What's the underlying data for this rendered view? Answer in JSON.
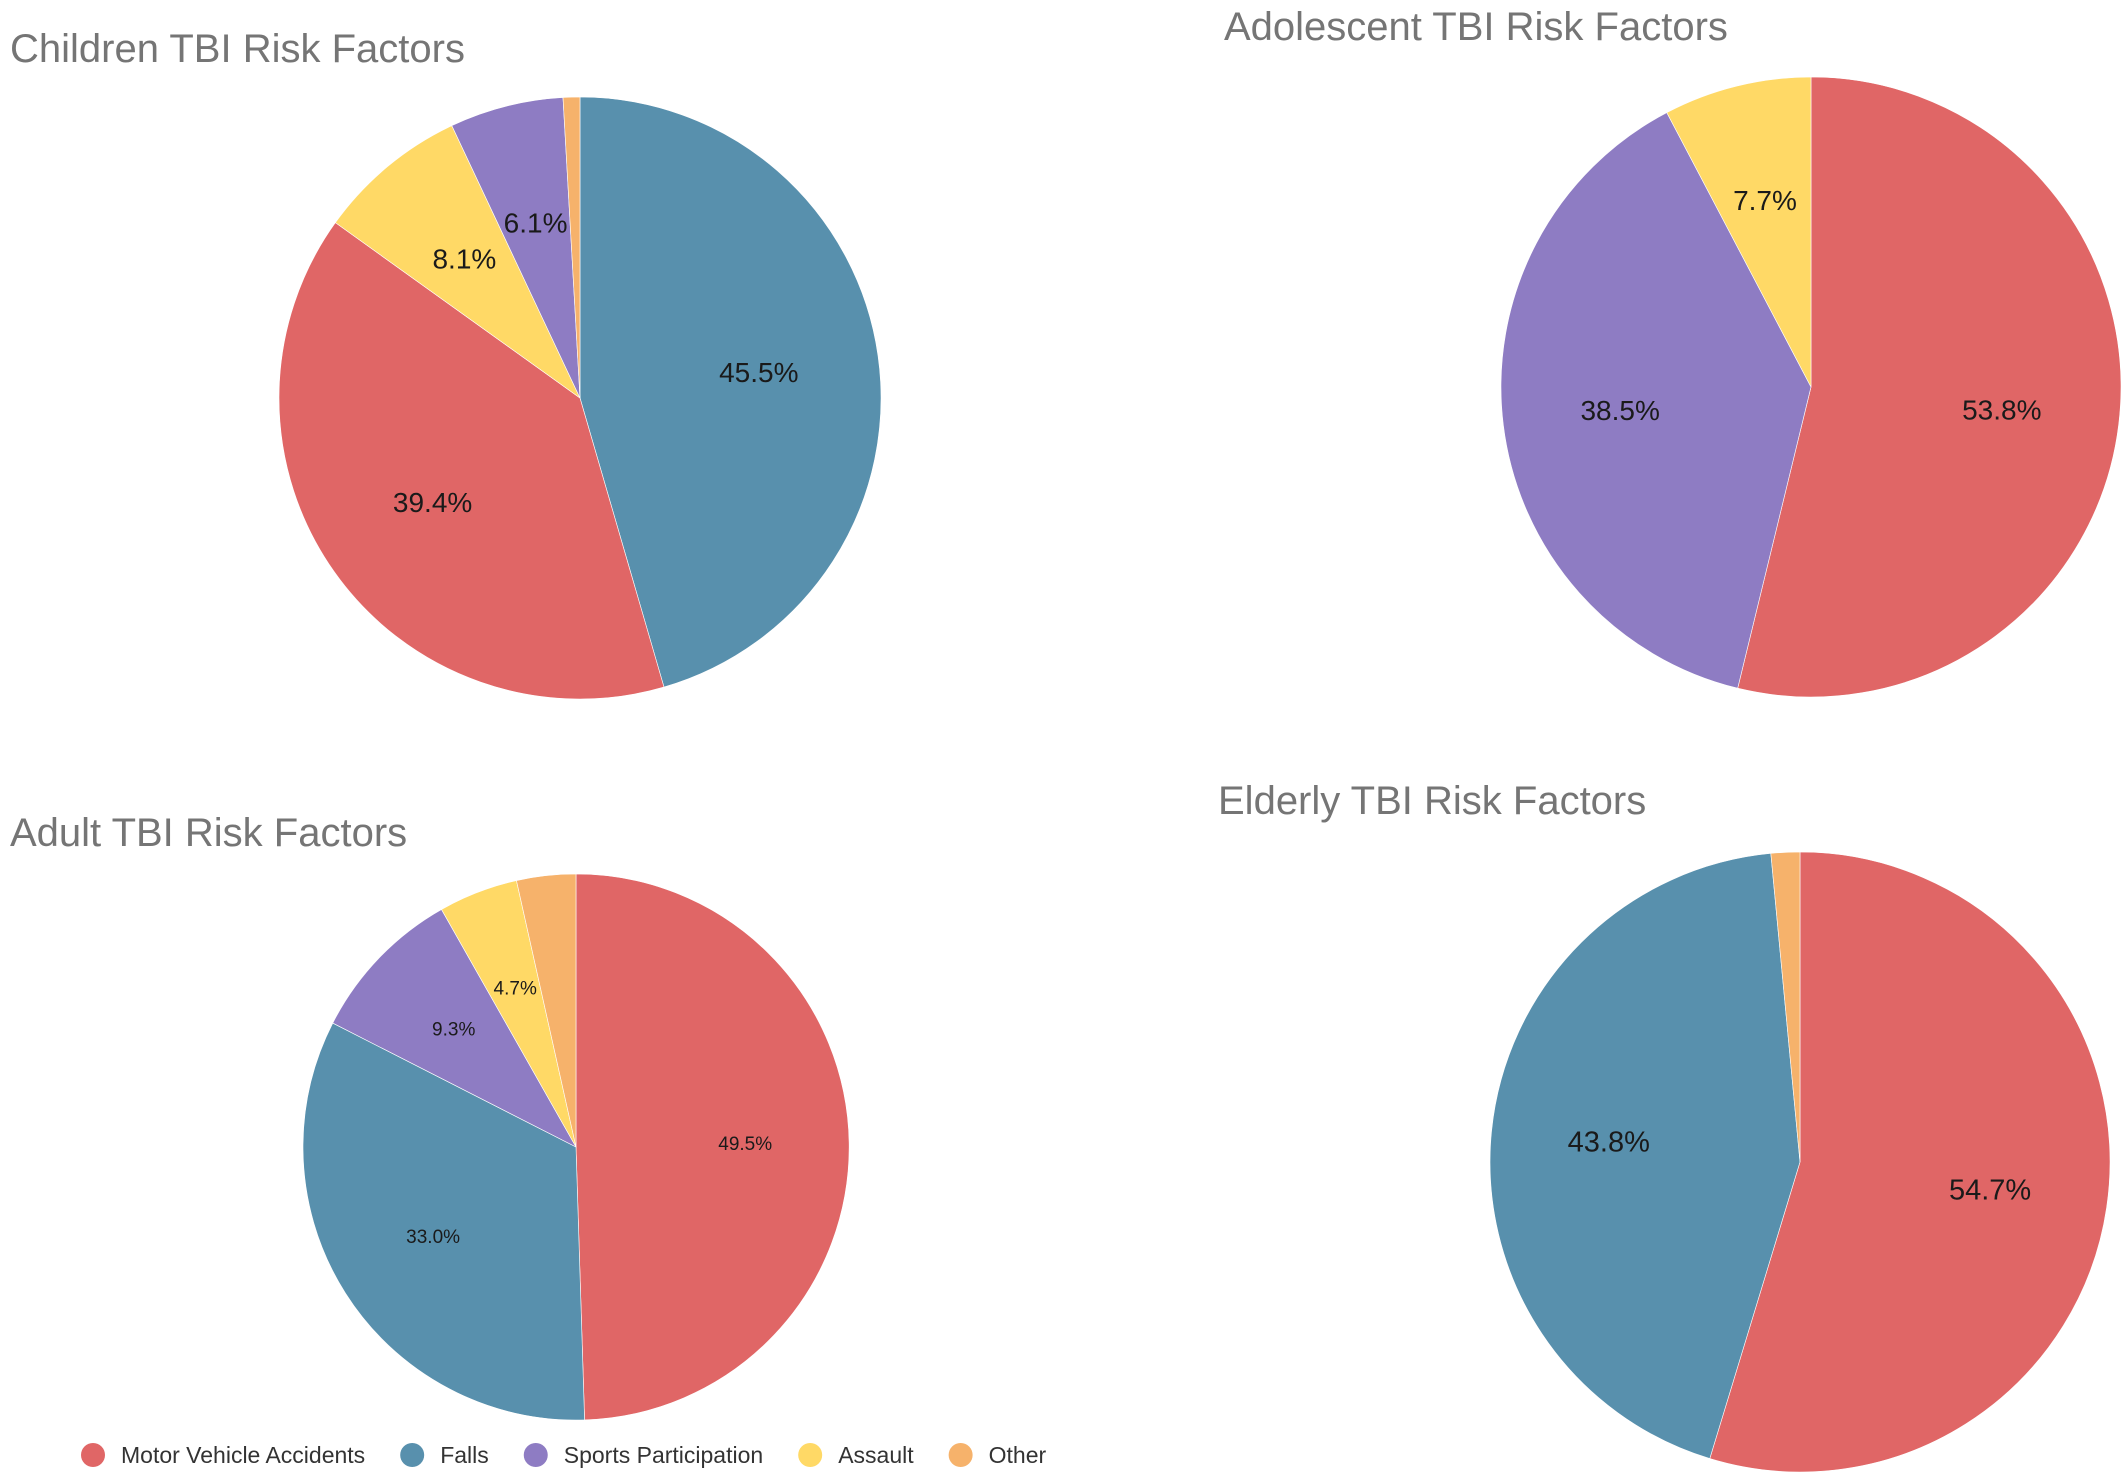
{
  "palette": {
    "Motor Vehicle Accidents": "#e06666",
    "Falls": "#5890ad",
    "Sports Participation": "#8e7cc3",
    "Assault": "#ffd966",
    "Other": "#f6b26b"
  },
  "legend": {
    "items": [
      {
        "label": "Motor Vehicle Accidents",
        "color": "#e06666"
      },
      {
        "label": "Falls",
        "color": "#5890ad"
      },
      {
        "label": "Sports Participation",
        "color": "#8e7cc3"
      },
      {
        "label": "Assault",
        "color": "#ffd966"
      },
      {
        "label": "Other",
        "color": "#f6b26b"
      }
    ]
  },
  "chart_data": [
    {
      "type": "pie",
      "title": "Children TBI Risk Factors",
      "start": "12 o'clock",
      "direction": "clockwise",
      "slices": [
        {
          "category": "Falls",
          "value": 45.5,
          "label": "45.5%"
        },
        {
          "category": "Motor Vehicle Accidents",
          "value": 39.4,
          "label": "39.4%"
        },
        {
          "category": "Assault",
          "value": 8.1,
          "label": "8.1%"
        },
        {
          "category": "Sports Participation",
          "value": 6.1,
          "label": "6.1%"
        },
        {
          "category": "Other",
          "value": 0.9,
          "label": ""
        }
      ]
    },
    {
      "type": "pie",
      "title": "Adolescent TBI Risk Factors",
      "start": "12 o'clock",
      "direction": "clockwise",
      "slices": [
        {
          "category": "Motor Vehicle Accidents",
          "value": 53.8,
          "label": "53.8%"
        },
        {
          "category": "Sports Participation",
          "value": 38.5,
          "label": "38.5%"
        },
        {
          "category": "Assault",
          "value": 7.7,
          "label": "7.7%"
        }
      ]
    },
    {
      "type": "pie",
      "title": "Adult TBI Risk Factors",
      "start": "12 o'clock",
      "direction": "clockwise",
      "slices": [
        {
          "category": "Motor Vehicle Accidents",
          "value": 49.5,
          "label": "49.5%"
        },
        {
          "category": "Falls",
          "value": 33.0,
          "label": "33.0%"
        },
        {
          "category": "Sports Participation",
          "value": 9.3,
          "label": "9.3%"
        },
        {
          "category": "Assault",
          "value": 4.7,
          "label": "4.7%"
        },
        {
          "category": "Other",
          "value": 3.5,
          "label": ""
        }
      ]
    },
    {
      "type": "pie",
      "title": "Elderly TBI Risk Factors",
      "start": "12 o'clock",
      "direction": "clockwise",
      "slices": [
        {
          "category": "Motor Vehicle Accidents",
          "value": 54.7,
          "label": "54.7%"
        },
        {
          "category": "Falls",
          "value": 43.8,
          "label": "43.8%"
        },
        {
          "category": "Other",
          "value": 1.5,
          "label": ""
        }
      ]
    }
  ]
}
